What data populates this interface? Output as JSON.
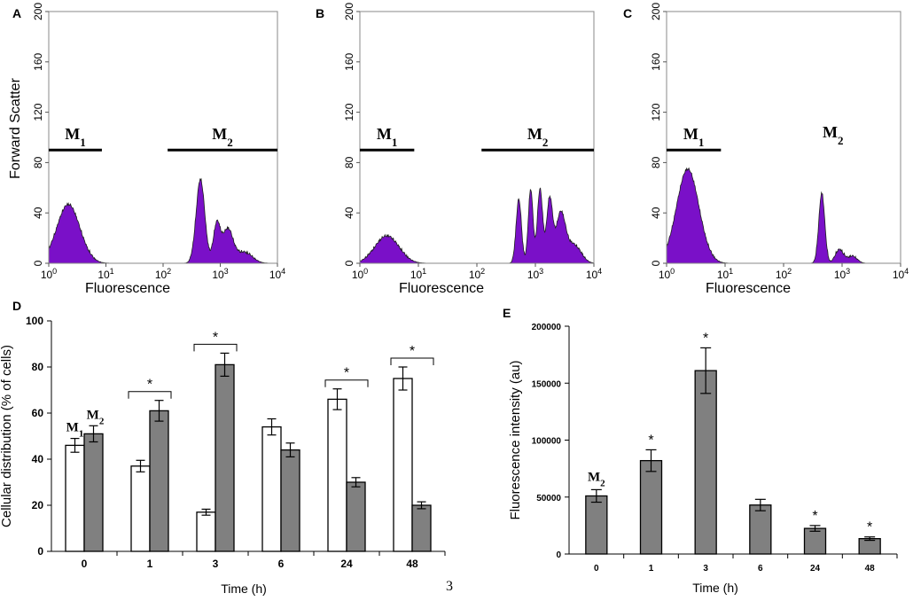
{
  "footer_page": "3",
  "colors": {
    "fill": "#7a10c8",
    "edge": "#1f1f1f",
    "bar_open": "#ffffff",
    "bar_grey": "#808080"
  },
  "chart_data": [
    {
      "panel": "A",
      "type": "area",
      "title": "",
      "xlabel": "Fluorescence",
      "ylabel": "Forward Scatter",
      "xscale": "log",
      "xlim": [
        1,
        10000
      ],
      "ylim": [
        0,
        200
      ],
      "yticks": [
        "0",
        "40",
        "80",
        "120",
        "160",
        "200"
      ],
      "xticks": [
        {
          "b": "10",
          "e": "0"
        },
        {
          "b": "10",
          "e": "1"
        },
        {
          "b": "10",
          "e": "2"
        },
        {
          "b": "10",
          "e": "3"
        },
        {
          "b": "10",
          "e": "4"
        }
      ],
      "gates": [
        {
          "name": "M",
          "sub": "1",
          "x0": 1,
          "x1": 8.5,
          "y": 90
        },
        {
          "name": "M",
          "sub": "2",
          "x0": 120,
          "x1": 10000,
          "y": 90
        }
      ],
      "peaks": [
        {
          "x": 2.2,
          "h": 46,
          "w": 0.2
        },
        {
          "x": 450,
          "h": 66,
          "w": 0.075
        },
        {
          "x": 870,
          "h": 30,
          "w": 0.06
        },
        {
          "x": 1350,
          "h": 26,
          "w": 0.09
        },
        {
          "x": 2600,
          "h": 8,
          "w": 0.14
        }
      ]
    },
    {
      "panel": "B",
      "type": "area",
      "title": "",
      "xlabel": "Fluorescence",
      "ylabel": "",
      "xscale": "log",
      "xlim": [
        1,
        10000
      ],
      "ylim": [
        0,
        200
      ],
      "yticks": [
        "0",
        "40",
        "80",
        "120",
        "160",
        "200"
      ],
      "xticks": [
        {
          "b": "10",
          "e": "0"
        },
        {
          "b": "10",
          "e": "1"
        },
        {
          "b": "10",
          "e": "2"
        },
        {
          "b": "10",
          "e": "3"
        },
        {
          "b": "10",
          "e": "4"
        }
      ],
      "gates": [
        {
          "name": "M",
          "sub": "1",
          "x0": 1,
          "x1": 8.5,
          "y": 90
        },
        {
          "name": "M",
          "sub": "2",
          "x0": 120,
          "x1": 10000,
          "y": 90
        }
      ],
      "peaks": [
        {
          "x": 2.9,
          "h": 21,
          "w": 0.2
        },
        {
          "x": 520,
          "h": 50,
          "w": 0.045
        },
        {
          "x": 830,
          "h": 58,
          "w": 0.04
        },
        {
          "x": 1200,
          "h": 58,
          "w": 0.045
        },
        {
          "x": 1750,
          "h": 50,
          "w": 0.05
        },
        {
          "x": 2700,
          "h": 38,
          "w": 0.08
        },
        {
          "x": 4500,
          "h": 14,
          "w": 0.12
        }
      ]
    },
    {
      "panel": "C",
      "type": "area",
      "title": "",
      "xlabel": "Fluorescence",
      "ylabel": "",
      "xscale": "log",
      "xlim": [
        1,
        10000
      ],
      "ylim": [
        0,
        200
      ],
      "yticks": [
        "0",
        "40",
        "80",
        "120",
        "160",
        "200"
      ],
      "xticks": [
        {
          "b": "10",
          "e": "0"
        },
        {
          "b": "10",
          "e": "1"
        },
        {
          "b": "10",
          "e": "2"
        },
        {
          "b": "10",
          "e": "3"
        },
        {
          "b": "10",
          "e": "4"
        }
      ],
      "gates": [
        {
          "name": "M",
          "sub": "1",
          "x0": 1,
          "x1": 8.5,
          "y": 90
        }
      ],
      "labels": [
        {
          "name": "M",
          "sub": "2",
          "x": 700,
          "y": 100
        }
      ],
      "peaks": [
        {
          "x": 2.3,
          "h": 74,
          "w": 0.19
        },
        {
          "x": 450,
          "h": 55,
          "w": 0.05
        },
        {
          "x": 900,
          "h": 10,
          "w": 0.07
        },
        {
          "x": 1500,
          "h": 5,
          "w": 0.08
        }
      ]
    },
    {
      "panel": "D",
      "type": "bar",
      "title": "",
      "xlabel": "Time (h)",
      "ylabel": "Cellular distribution (% of cells)",
      "categories": [
        "0",
        "1",
        "3",
        "6",
        "24",
        "48"
      ],
      "ylim": [
        0,
        100
      ],
      "yticks": [
        "0",
        "20",
        "40",
        "60",
        "80",
        "100"
      ],
      "series": [
        {
          "name": "M1",
          "values": [
            46,
            37,
            17,
            54,
            66,
            75
          ],
          "errors": [
            3,
            2.5,
            1.3,
            3.5,
            4.5,
            5
          ]
        },
        {
          "name": "M2",
          "values": [
            51,
            61,
            81,
            44,
            30,
            20
          ],
          "errors": [
            3.5,
            4.5,
            5,
            3,
            2,
            1.5
          ]
        }
      ],
      "series_labels": [
        {
          "name": "M",
          "sub": "1"
        },
        {
          "name": "M",
          "sub": "2"
        }
      ],
      "significance": [
        {
          "category": "1",
          "text": "*"
        },
        {
          "category": "3",
          "text": "*"
        },
        {
          "category": "24",
          "text": "*"
        },
        {
          "category": "48",
          "text": "*"
        }
      ]
    },
    {
      "panel": "E",
      "type": "bar",
      "title": "",
      "xlabel": "Time (h)",
      "ylabel": "Fluorescence intensity (au)",
      "categories": [
        "0",
        "1",
        "3",
        "6",
        "24",
        "48"
      ],
      "ylim": [
        0,
        200000
      ],
      "yticks": [
        "0",
        "50000",
        "100000",
        "150000",
        "200000"
      ],
      "series": [
        {
          "name": "M2",
          "values": [
            51000,
            82000,
            161000,
            43000,
            22500,
            13500
          ],
          "errors": [
            5500,
            9500,
            20000,
            5000,
            2500,
            1500
          ]
        }
      ],
      "series_labels": [
        {
          "name": "M",
          "sub": "2"
        }
      ],
      "significance": [
        {
          "category": "1",
          "text": "*"
        },
        {
          "category": "3",
          "text": "*"
        },
        {
          "category": "24",
          "text": "*"
        },
        {
          "category": "48",
          "text": "*"
        }
      ]
    }
  ]
}
